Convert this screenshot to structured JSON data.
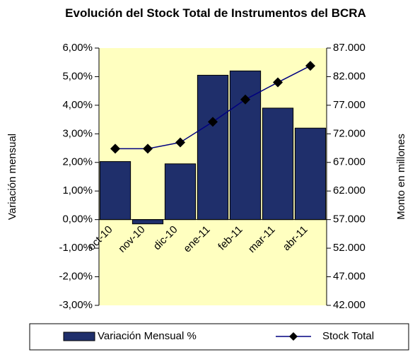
{
  "chart_data": {
    "type": "bar",
    "title": "Evolución del Stock Total de Instrumentos del BCRA",
    "y_label": "Variación mensual",
    "y2_label": "Monto en millones",
    "categories": [
      "oct-10",
      "nov-10",
      "dic-10",
      "ene-11",
      "feb-11",
      "mar-11",
      "abr-11"
    ],
    "series": [
      {
        "name": "Variación Mensual %",
        "color": "#1f2f6b",
        "values": [
          2.03,
          -0.15,
          1.95,
          5.05,
          5.2,
          3.9,
          3.2
        ]
      },
      {
        "name": "Stock Total",
        "type": "line",
        "axis": "y2",
        "color": "#000080",
        "values": [
          69400,
          69400,
          70500,
          74100,
          78000,
          81000,
          83900
        ]
      }
    ],
    "ylim": [
      -3,
      6
    ],
    "yticks": [
      {
        "value": -3,
        "label": "-3,00%"
      },
      {
        "value": -2,
        "label": "-2,00%"
      },
      {
        "value": -1,
        "label": "-1,00%"
      },
      {
        "value": 0,
        "label": "0,00%"
      },
      {
        "value": 1,
        "label": "1,00%"
      },
      {
        "value": 2,
        "label": "2,00%"
      },
      {
        "value": 3,
        "label": "3,00%"
      },
      {
        "value": 4,
        "label": "4,00%"
      },
      {
        "value": 5,
        "label": "5,00%"
      },
      {
        "value": 6,
        "label": "6,00%"
      }
    ],
    "y2lim": [
      42000,
      87000
    ],
    "y2ticks": [
      {
        "value": 42000,
        "label": "42.000"
      },
      {
        "value": 47000,
        "label": "47.000"
      },
      {
        "value": 52000,
        "label": "52.000"
      },
      {
        "value": 57000,
        "label": "57.000"
      },
      {
        "value": 62000,
        "label": "62.000"
      },
      {
        "value": 67000,
        "label": "67.000"
      },
      {
        "value": 72000,
        "label": "72.000"
      },
      {
        "value": 77000,
        "label": "77.000"
      },
      {
        "value": 82000,
        "label": "82.000"
      },
      {
        "value": 87000,
        "label": "87.000"
      }
    ],
    "plot_background": "#ffffc0",
    "legend": "bottom"
  }
}
